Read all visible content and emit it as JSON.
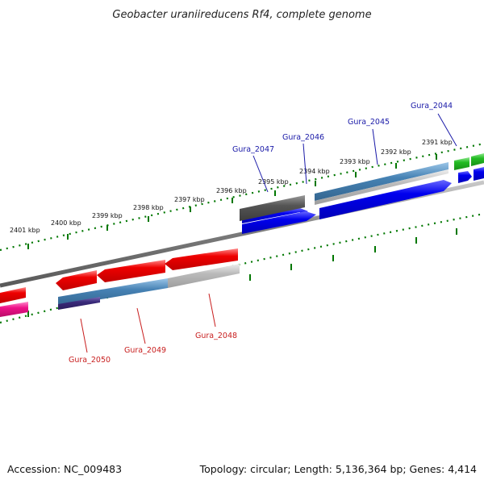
{
  "title": "Geobacter uraniireducens Rf4, complete genome",
  "footer": {
    "accession": "Accession: NC_009483",
    "summary": "Topology: circular; Length: 5,136,364 bp; Genes: 4,414"
  },
  "scale_labels": [
    "2391 kbp",
    "2392 kbp",
    "2393 kbp",
    "2394 kbp",
    "2395 kbp",
    "2396 kbp",
    "2397 kbp",
    "2398 kbp",
    "2399 kbp",
    "2400 kbp",
    "2401 kbp"
  ],
  "genes_top": [
    "Gura_2044",
    "Gura_2045",
    "Gura_2046",
    "Gura_2047"
  ],
  "genes_bottom": [
    "Gura_2048",
    "Gura_2049",
    "Gura_2050"
  ],
  "colors": {
    "forward_cds": "#0000ee",
    "reverse_cds": "#ee0000",
    "other_forward": "#22bb22",
    "other_reverse": "#ee1188",
    "dark_gray": "#555555",
    "light_gray": "#bbbbbb",
    "steel_blue": "#4682b4",
    "purple": "#3a2a7a",
    "tick_green": "#007700",
    "label_blue": "#1a1aa8",
    "label_red": "#c81e1e"
  }
}
